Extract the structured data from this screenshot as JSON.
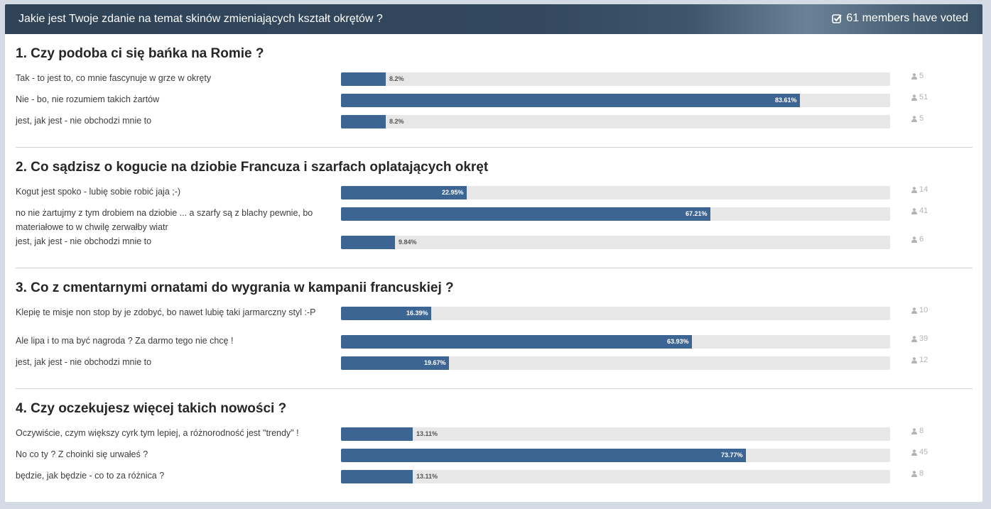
{
  "header": {
    "title": "Jakie jest Twoje zdanie na temat skinów zmieniających kształt okrętów ?",
    "votes_label": "61 members have voted",
    "vote_icon": "check-square-icon"
  },
  "colors": {
    "bar": "#3d6594",
    "track": "#e7e7e7",
    "header": "#2f4357"
  },
  "count_icon": "user-icon",
  "questions": [
    {
      "title": "1. Czy podoba ci się bańka na Romie ?",
      "choices": [
        {
          "label": "Tak - to jest to, co mnie fascynuje w grze w okręty",
          "pct": "8.2%",
          "value": 8.2,
          "count": "5"
        },
        {
          "label": "Nie - bo, nie rozumiem takich żartów",
          "pct": "83.61%",
          "value": 83.61,
          "count": "51"
        },
        {
          "label": "jest, jak jest - nie obchodzi mnie to",
          "pct": "8.2%",
          "value": 8.2,
          "count": "5"
        }
      ]
    },
    {
      "title": "2. Co sądzisz o kogucie na dziobie Francuza i szarfach oplatających okręt",
      "choices": [
        {
          "label": "Kogut jest spoko - lubię sobie robić jaja ;-)",
          "pct": "22.95%",
          "value": 22.95,
          "count": "14"
        },
        {
          "label": "no nie żartujmy z tym drobiem na dziobie ... a szarfy są z blachy pewnie, bo materiałowe to w chwilę zerwałby wiatr",
          "pct": "67.21%",
          "value": 67.21,
          "count": "41"
        },
        {
          "label": "jest, jak jest - nie obchodzi mnie to",
          "pct": "9.84%",
          "value": 9.84,
          "count": "6"
        }
      ]
    },
    {
      "title": "3. Co z cmentarnymi ornatami do wygrania w kampanii francuskiej ?",
      "choices": [
        {
          "label": "Klepię te misje non stop by je zdobyć, bo nawet lubię taki jarmarczny styl :-P",
          "pct": "16.39%",
          "value": 16.39,
          "count": "10"
        },
        {
          "label": "Ale lipa i to ma być nagroda ? Za darmo tego nie chcę !",
          "pct": "63.93%",
          "value": 63.93,
          "count": "39"
        },
        {
          "label": "jest, jak jest - nie obchodzi mnie to",
          "pct": "19.67%",
          "value": 19.67,
          "count": "12"
        }
      ]
    },
    {
      "title": "4. Czy oczekujesz więcej takich nowości ?",
      "choices": [
        {
          "label": "Oczywiście, czym większy cyrk tym lepiej, a różnorodność jest \"trendy\" !",
          "pct": "13.11%",
          "value": 13.11,
          "count": "8"
        },
        {
          "label": "No co ty ? Z choinki się urwałeś ?",
          "pct": "73.77%",
          "value": 73.77,
          "count": "45"
        },
        {
          "label": "będzie, jak będzie - co to za różnica ?",
          "pct": "13.11%",
          "value": 13.11,
          "count": "8"
        }
      ]
    }
  ]
}
